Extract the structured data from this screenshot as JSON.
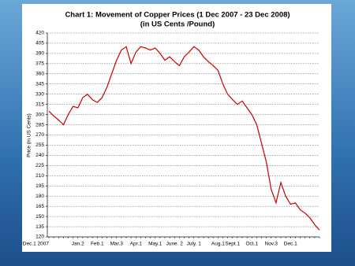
{
  "chart_data": {
    "type": "line",
    "title": "Chart 1: Movement of Copper Prices (1 Dec 2007 -  23 Dec 2008)",
    "subtitle": "(in US Cents /Pound)",
    "y_label": "Price (in US Cents)",
    "categories": [
      "Dec.1 2007",
      null,
      null,
      null,
      null,
      null,
      "Jan.2",
      null,
      null,
      null,
      "Feb.1",
      null,
      null,
      null,
      "Mar.3",
      null,
      null,
      null,
      "Apr.1",
      null,
      null,
      null,
      "May.1",
      null,
      null,
      null,
      "June. 2",
      null,
      null,
      null,
      "July. 1",
      null,
      null,
      null,
      null,
      "Aug.1",
      null,
      null,
      "Sept.1",
      null,
      null,
      null,
      "Oct.1",
      null,
      null,
      null,
      "Nov.3",
      null,
      null,
      null,
      "Dec.1",
      null,
      null,
      null,
      null,
      null,
      null
    ],
    "series": [
      {
        "name": "Copper price",
        "color": "#cc0000",
        "values": [
          305,
          298,
          292,
          285,
          300,
          312,
          310,
          325,
          330,
          322,
          318,
          325,
          340,
          360,
          380,
          395,
          400,
          375,
          392,
          400,
          398,
          395,
          398,
          390,
          380,
          385,
          378,
          372,
          385,
          392,
          400,
          395,
          385,
          378,
          372,
          365,
          345,
          330,
          322,
          315,
          320,
          310,
          300,
          285,
          258,
          230,
          190,
          170,
          200,
          180,
          168,
          170,
          160,
          155,
          148,
          138,
          130
        ]
      }
    ],
    "ylim": [
      120,
      420
    ],
    "yticks": [
      120,
      135,
      150,
      165,
      180,
      195,
      210,
      225,
      240,
      255,
      270,
      285,
      300,
      315,
      330,
      345,
      360,
      375,
      390,
      405,
      420
    ],
    "grid": true
  }
}
